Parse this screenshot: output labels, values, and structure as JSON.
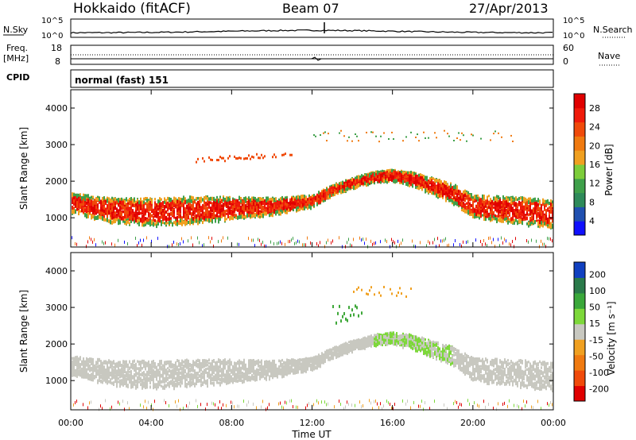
{
  "header": {
    "title": "Hokkaido (fitACF)",
    "beam": "Beam 07",
    "date": "27/Apr/2013"
  },
  "aux_panel": {
    "nsky_label": "N.Sky",
    "nsky_ticks": [
      "10^5",
      "10^0"
    ],
    "nsearch_label": "N.Search",
    "nsearch_ticks": [
      "10^5",
      "10^0"
    ],
    "freq_label": "Freq.",
    "freq_unit": "[MHz]",
    "freq_ticks": [
      "18",
      "8"
    ],
    "nave_label": "Nave",
    "nave_ticks": [
      "60",
      "0"
    ],
    "cpid_label": "CPID",
    "cpid_value": "normal (fast) 151"
  },
  "chart_data": [
    {
      "type": "heatmap",
      "ylabel": "Slant Range [km]",
      "yticks": [
        "4000",
        "3000",
        "2000",
        "1000"
      ],
      "ylim": [
        200,
        4500
      ],
      "colorbar_label": "Power [dB]",
      "colorbar_ticks": [
        "28",
        "24",
        "20",
        "16",
        "12",
        "8",
        "4"
      ],
      "colorbar_colors": [
        "#1010ff",
        "#2050b0",
        "#2e8a5a",
        "#3fa04a",
        "#7dcd3a",
        "#f0a020",
        "#f07a10",
        "#f04a0a",
        "#f01a0a",
        "#e00000"
      ],
      "main_echo_band_km": {
        "x_hours": [
          0,
          2,
          4,
          6,
          8,
          10,
          12,
          13,
          14,
          15,
          16,
          17,
          18,
          19,
          20,
          21,
          22,
          23,
          24
        ],
        "center": [
          1450,
          1250,
          1200,
          1250,
          1300,
          1350,
          1500,
          1800,
          2000,
          2150,
          2200,
          2100,
          1900,
          1700,
          1350,
          1300,
          1250,
          1200,
          1150
        ]
      }
    },
    {
      "type": "heatmap",
      "ylabel": "Slant Range [km]",
      "yticks": [
        "4000",
        "3000",
        "2000",
        "1000"
      ],
      "ylim": [
        200,
        4500
      ],
      "colorbar_label": "Velocity [m s⁻¹]",
      "colorbar_ticks": [
        "200",
        "100",
        "50",
        "15",
        "-15",
        "-50",
        "-100",
        "-200"
      ],
      "colorbar_colors": [
        "#1040c0",
        "#2a7a4a",
        "#3aa83a",
        "#7dd83a",
        "#c8c8c0",
        "#f0a020",
        "#f07a10",
        "#f04a0a",
        "#e00000"
      ],
      "xlabel": "Time UT",
      "xticks": [
        "00:00",
        "04:00",
        "08:00",
        "12:00",
        "16:00",
        "20:00",
        "00:00"
      ],
      "xlim": [
        0,
        24
      ]
    }
  ]
}
